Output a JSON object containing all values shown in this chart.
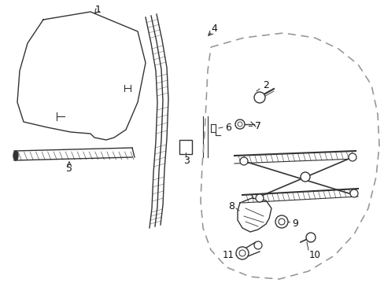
{
  "background_color": "#ffffff",
  "line_color": "#333333",
  "dashed_color": "#999999",
  "label_color": "#111111",
  "figsize": [
    4.89,
    3.6
  ],
  "dpi": 100
}
